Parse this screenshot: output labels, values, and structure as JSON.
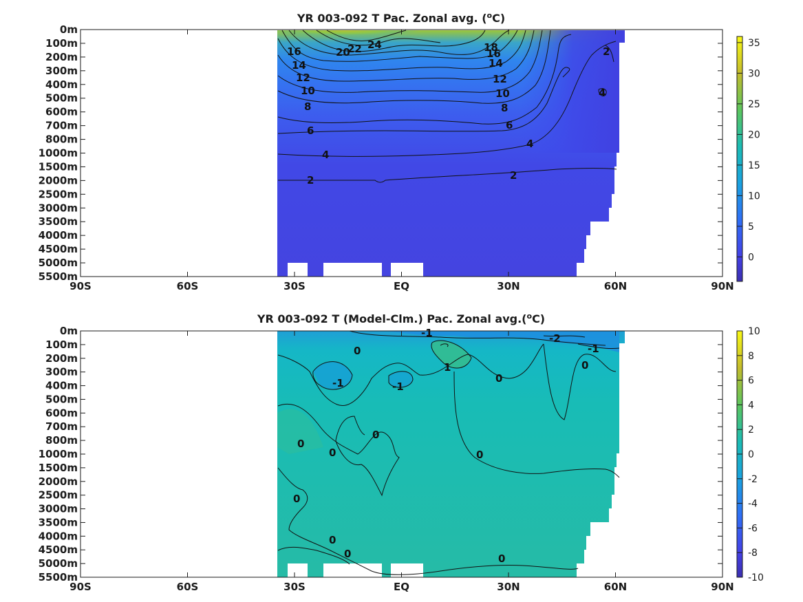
{
  "chart_data": [
    {
      "type": "heatmap",
      "title": "YR 003-092 T Pac. Zonal avg. (",
      "title_sup": "o",
      "title_end": "C)",
      "y_labels": [
        "0m",
        "100m",
        "200m",
        "300m",
        "400m",
        "500m",
        "600m",
        "700m",
        "800m",
        "1000m",
        "1500m",
        "2000m",
        "2500m",
        "3000m",
        "3500m",
        "4000m",
        "4500m",
        "5000m",
        "5500m"
      ],
      "x_labels": [
        "90S",
        "60S",
        "30S",
        "EQ",
        "30N",
        "60N",
        "90N"
      ],
      "x_values": [
        -90,
        -60,
        -30,
        0,
        30,
        60,
        90
      ],
      "colorbar": {
        "min": -4,
        "max": 36,
        "ticks": [
          0,
          5,
          10,
          15,
          20,
          25,
          30,
          35
        ],
        "tick_labels": [
          "0",
          "5",
          "10",
          "15",
          "20",
          "25",
          "30",
          "35"
        ]
      },
      "contour_labels": [
        "24",
        "22",
        "20",
        "18",
        "16",
        "16",
        "14",
        "14",
        "12",
        "12",
        "10",
        "10",
        "8",
        "8",
        "6",
        "6",
        "4",
        "4",
        "2",
        "2",
        "2",
        "4"
      ]
    },
    {
      "type": "heatmap",
      "title": "YR 003-092 T (Model-Clm.) Pac. Zonal avg.(",
      "title_sup": "o",
      "title_end": "C)",
      "y_labels": [
        "0m",
        "100m",
        "200m",
        "300m",
        "400m",
        "500m",
        "600m",
        "700m",
        "800m",
        "1000m",
        "1500m",
        "2000m",
        "2500m",
        "3000m",
        "3500m",
        "4000m",
        "4500m",
        "5000m",
        "5500m"
      ],
      "x_labels": [
        "90S",
        "60S",
        "30S",
        "EQ",
        "30N",
        "60N",
        "90N"
      ],
      "x_values": [
        -90,
        -60,
        -30,
        0,
        30,
        60,
        90
      ],
      "colorbar": {
        "min": -10,
        "max": 10,
        "ticks": [
          10,
          8,
          6,
          4,
          2,
          0,
          -2,
          -4,
          -6,
          -8,
          -10
        ],
        "tick_labels": [
          "10",
          "8",
          "6",
          "4",
          "2",
          "0",
          "-2",
          "-4",
          "-6",
          "-8",
          "-10"
        ]
      },
      "contour_labels": [
        "-1",
        "-2",
        "-1",
        "0",
        "1",
        "0",
        "0",
        "-1",
        "-1",
        "0",
        "0",
        "0",
        "0",
        "0",
        "0",
        "0",
        "0",
        "0"
      ]
    }
  ],
  "colors": {
    "ocean_cold": "#3f3fe8",
    "ocean_mid": "#2f80f0",
    "ocean_warm": "#7fc640",
    "diff_bg": "#22b8aa"
  }
}
